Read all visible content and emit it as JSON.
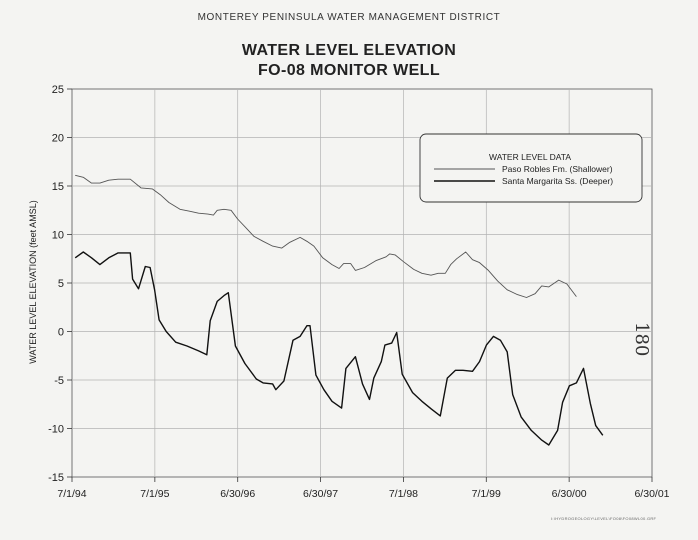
{
  "header": {
    "organization": "MONTEREY PENINSULA WATER MANAGEMENT DISTRICT",
    "title_line1": "WATER LEVEL ELEVATION",
    "title_line2": "FO-08 MONITOR WELL"
  },
  "side_stamp": "180",
  "footer_code": "I:\\HYDROGEOLOGY\\LEVEL\\FO08\\FO08WL00.GRF",
  "chart_data": {
    "type": "line",
    "title": "WATER LEVEL ELEVATION FO-08 MONITOR WELL",
    "xlabel": "",
    "ylabel": "WATER LEVEL ELEVATION (feet AMSL)",
    "xlim": [
      "1994-07-01",
      "2001-06-30"
    ],
    "ylim": [
      -15,
      25
    ],
    "x_ticks": [
      "7/1/94",
      "7/1/95",
      "6/30/96",
      "6/30/97",
      "7/1/98",
      "7/1/99",
      "6/30/00",
      "6/30/01"
    ],
    "y_ticks": [
      "25",
      "20",
      "15",
      "10",
      "5",
      "0",
      "-5",
      "-10",
      "-15"
    ],
    "grid": true,
    "legend": {
      "title": "WATER LEVEL DATA",
      "placement": "top-right"
    },
    "series": [
      {
        "name": "Paso Robles Fm. (Shallower)",
        "style": "thin",
        "points": [
          [
            "1994-07-15",
            16.1
          ],
          [
            "1994-08-20",
            15.9
          ],
          [
            "1994-09-25",
            15.3
          ],
          [
            "1994-11-01",
            15.3
          ],
          [
            "1994-12-10",
            15.6
          ],
          [
            "1995-01-20",
            15.7
          ],
          [
            "1995-03-15",
            15.7
          ],
          [
            "1995-05-01",
            14.8
          ],
          [
            "1995-06-20",
            14.7
          ],
          [
            "1995-07-25",
            14.1
          ],
          [
            "1995-09-01",
            13.3
          ],
          [
            "1995-10-20",
            12.6
          ],
          [
            "1995-12-01",
            12.4
          ],
          [
            "1996-01-10",
            12.2
          ],
          [
            "1996-02-20",
            12.1
          ],
          [
            "1996-03-15",
            12.0
          ],
          [
            "1996-04-01",
            12.5
          ],
          [
            "1996-05-01",
            12.6
          ],
          [
            "1996-06-01",
            12.5
          ],
          [
            "1996-06-30",
            11.6
          ],
          [
            "1996-08-01",
            10.8
          ],
          [
            "1996-09-10",
            9.8
          ],
          [
            "1996-10-20",
            9.3
          ],
          [
            "1996-12-01",
            8.8
          ],
          [
            "1997-01-10",
            8.6
          ],
          [
            "1997-02-15",
            9.2
          ],
          [
            "1997-04-01",
            9.7
          ],
          [
            "1997-05-01",
            9.3
          ],
          [
            "1997-06-01",
            8.8
          ],
          [
            "1997-07-10",
            7.6
          ],
          [
            "1997-08-20",
            6.9
          ],
          [
            "1997-09-20",
            6.5
          ],
          [
            "1997-10-10",
            7.0
          ],
          [
            "1997-11-10",
            7.0
          ],
          [
            "1997-12-01",
            6.3
          ],
          [
            "1998-01-10",
            6.6
          ],
          [
            "1998-03-01",
            7.3
          ],
          [
            "1998-04-15",
            7.7
          ],
          [
            "1998-05-01",
            8.0
          ],
          [
            "1998-05-25",
            7.9
          ],
          [
            "1998-07-01",
            7.2
          ],
          [
            "1998-08-15",
            6.4
          ],
          [
            "1998-09-20",
            6.0
          ],
          [
            "1998-10-30",
            5.8
          ],
          [
            "1998-12-01",
            6.0
          ],
          [
            "1999-01-01",
            6.0
          ],
          [
            "1999-01-25",
            6.9
          ],
          [
            "1999-02-20",
            7.5
          ],
          [
            "1999-04-01",
            8.2
          ],
          [
            "1999-05-01",
            7.4
          ],
          [
            "1999-06-01",
            7.1
          ],
          [
            "1999-07-10",
            6.3
          ],
          [
            "1999-08-20",
            5.2
          ],
          [
            "1999-10-01",
            4.3
          ],
          [
            "1999-11-15",
            3.8
          ],
          [
            "1999-12-25",
            3.5
          ],
          [
            "2000-02-01",
            3.9
          ],
          [
            "2000-03-01",
            4.7
          ],
          [
            "2000-04-01",
            4.6
          ],
          [
            "2000-05-15",
            5.3
          ],
          [
            "2000-06-20",
            4.9
          ],
          [
            "2000-08-01",
            3.6
          ]
        ]
      },
      {
        "name": "Santa Margarita Ss. (Deeper)",
        "style": "thick",
        "points": [
          [
            "1994-07-15",
            7.6
          ],
          [
            "1994-08-20",
            8.2
          ],
          [
            "1994-09-25",
            7.6
          ],
          [
            "1994-11-01",
            6.9
          ],
          [
            "1994-12-10",
            7.6
          ],
          [
            "1995-01-20",
            8.1
          ],
          [
            "1995-03-15",
            8.1
          ],
          [
            "1995-03-25",
            5.4
          ],
          [
            "1995-04-20",
            4.4
          ],
          [
            "1995-05-20",
            6.7
          ],
          [
            "1995-06-10",
            6.6
          ],
          [
            "1995-06-30",
            4.3
          ],
          [
            "1995-07-20",
            1.2
          ],
          [
            "1995-08-20",
            0.0
          ],
          [
            "1995-10-01",
            -1.1
          ],
          [
            "1995-11-20",
            -1.5
          ],
          [
            "1996-01-10",
            -2.0
          ],
          [
            "1996-02-15",
            -2.4
          ],
          [
            "1996-03-01",
            1.1
          ],
          [
            "1996-04-01",
            3.1
          ],
          [
            "1996-05-01",
            3.7
          ],
          [
            "1996-05-20",
            4.0
          ],
          [
            "1996-06-20",
            -1.5
          ],
          [
            "1996-08-01",
            -3.3
          ],
          [
            "1996-09-20",
            -4.9
          ],
          [
            "1996-10-20",
            -5.3
          ],
          [
            "1996-12-01",
            -5.4
          ],
          [
            "1996-12-15",
            -6.0
          ],
          [
            "1997-01-20",
            -5.1
          ],
          [
            "1997-03-01",
            -0.9
          ],
          [
            "1997-04-01",
            -0.5
          ],
          [
            "1997-05-01",
            0.6
          ],
          [
            "1997-05-15",
            0.6
          ],
          [
            "1997-06-10",
            -4.5
          ],
          [
            "1997-07-15",
            -6.0
          ],
          [
            "1997-08-20",
            -7.2
          ],
          [
            "1997-10-01",
            -7.9
          ],
          [
            "1997-10-20",
            -3.8
          ],
          [
            "1997-12-01",
            -2.6
          ],
          [
            "1998-01-01",
            -5.4
          ],
          [
            "1998-02-01",
            -7.0
          ],
          [
            "1998-02-20",
            -4.8
          ],
          [
            "1998-03-25",
            -3.1
          ],
          [
            "1998-04-10",
            -1.4
          ],
          [
            "1998-05-10",
            -1.2
          ],
          [
            "1998-06-01",
            -0.1
          ],
          [
            "1998-06-25",
            -4.4
          ],
          [
            "1998-08-10",
            -6.3
          ],
          [
            "1998-09-20",
            -7.2
          ],
          [
            "1998-11-01",
            -8.0
          ],
          [
            "1998-12-10",
            -8.7
          ],
          [
            "1999-01-10",
            -4.8
          ],
          [
            "1999-02-15",
            -4.0
          ],
          [
            "1999-03-20",
            -4.0
          ],
          [
            "1999-05-01",
            -4.1
          ],
          [
            "1999-06-01",
            -3.1
          ],
          [
            "1999-07-01",
            -1.4
          ],
          [
            "1999-08-01",
            -0.5
          ],
          [
            "1999-09-01",
            -0.9
          ],
          [
            "1999-10-01",
            -2.1
          ],
          [
            "1999-10-25",
            -6.5
          ],
          [
            "1999-12-01",
            -8.8
          ],
          [
            "2000-01-15",
            -10.2
          ],
          [
            "2000-03-01",
            -11.2
          ],
          [
            "2000-04-01",
            -11.7
          ],
          [
            "2000-05-10",
            -10.2
          ],
          [
            "2000-06-01",
            -7.3
          ],
          [
            "2000-07-01",
            -5.6
          ],
          [
            "2000-08-01",
            -5.3
          ],
          [
            "2000-09-01",
            -3.8
          ],
          [
            "2000-10-01",
            -7.4
          ],
          [
            "2000-10-25",
            -9.7
          ],
          [
            "2000-11-25",
            -10.7
          ]
        ]
      }
    ]
  }
}
